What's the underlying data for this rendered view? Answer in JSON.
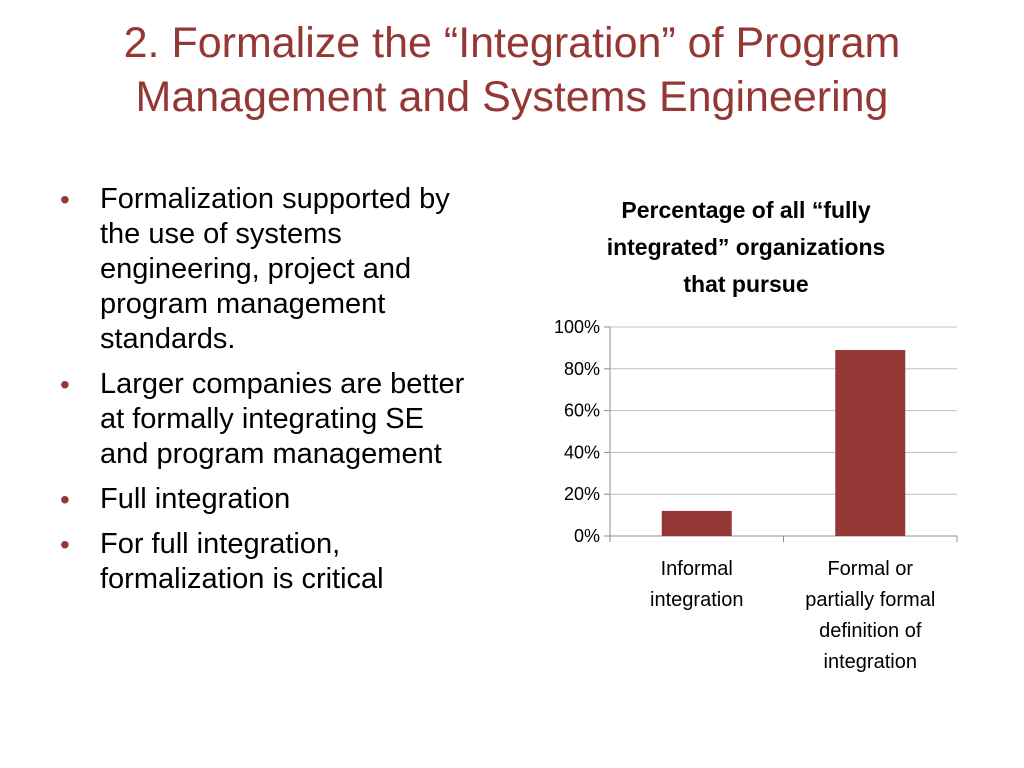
{
  "slide": {
    "title_line1": "2. Formalize the “Integration” of Program",
    "title_line2": "Management and Systems Engineering",
    "bullets": [
      "Formalization supported by the use of systems engineering, project and program management standards.",
      "Larger companies are better at formally integrating SE and program management",
      "Full integration",
      "For full integration, formalization is critical"
    ],
    "bullet_glyph": "•"
  },
  "colors": {
    "accent": "#953735",
    "bar": "#953735",
    "grid": "#bfbfbf"
  },
  "chart_data": {
    "type": "bar",
    "title": [
      "Percentage of all “fully",
      "integrated” organizations",
      "that pursue"
    ],
    "categories": [
      [
        "Informal",
        "integration"
      ],
      [
        "Formal or",
        "partially formal",
        "definition of",
        "integration"
      ]
    ],
    "values": [
      12,
      89
    ],
    "ylim": [
      0,
      100
    ],
    "yticks": [
      0,
      20,
      40,
      60,
      80,
      100
    ],
    "ytick_labels": [
      "0%",
      "20%",
      "40%",
      "60%",
      "80%",
      "100%"
    ],
    "grid": true,
    "legend": "none"
  }
}
